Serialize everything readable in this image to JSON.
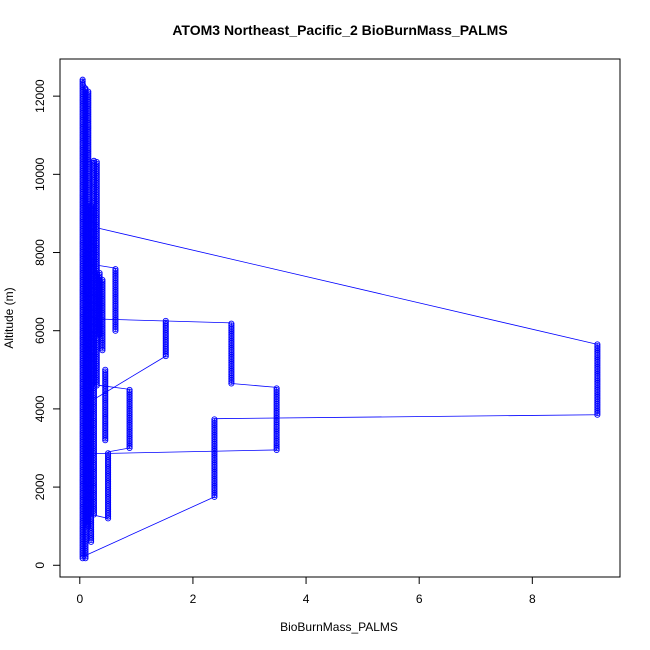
{
  "chart_data": {
    "type": "scatter",
    "title": "ATOM3 Northeast_Pacific_2 BioBurnMass_PALMS",
    "xlabel": "BioBurnMass_PALMS",
    "ylabel": "Altitude (m)",
    "xlim": [
      -0.35,
      9.55
    ],
    "ylim": [
      -300,
      12950
    ],
    "xticks": [
      0,
      2,
      4,
      6,
      8
    ],
    "yticks": [
      0,
      2000,
      4000,
      6000,
      8000,
      10000,
      12000
    ],
    "grid": false,
    "marker": "open-circle",
    "connect_points": true,
    "series_color": "#0000ff",
    "vertical_runs": [
      {
        "x": 0.05,
        "y0": 180,
        "y1": 12450
      },
      {
        "x": 0.1,
        "y0": 180,
        "y1": 12200
      },
      {
        "x": 0.15,
        "y0": 1000,
        "y1": 12150
      },
      {
        "x": 0.2,
        "y0": 600,
        "y1": 9200
      },
      {
        "x": 0.25,
        "y0": 1300,
        "y1": 10350
      },
      {
        "x": 0.3,
        "y0": 4600,
        "y1": 10350
      },
      {
        "x": 0.35,
        "y0": 5900,
        "y1": 7500
      },
      {
        "x": 0.4,
        "y0": 5500,
        "y1": 7300
      },
      {
        "x": 0.45,
        "y0": 3200,
        "y1": 5000
      },
      {
        "x": 0.5,
        "y0": 1200,
        "y1": 2900
      },
      {
        "x": 0.63,
        "y0": 6000,
        "y1": 7600
      },
      {
        "x": 0.88,
        "y0": 3000,
        "y1": 4500
      },
      {
        "x": 1.52,
        "y0": 5350,
        "y1": 6250
      },
      {
        "x": 2.38,
        "y0": 1750,
        "y1": 3750
      },
      {
        "x": 2.68,
        "y0": 4650,
        "y1": 6200
      },
      {
        "x": 3.48,
        "y0": 2950,
        "y1": 4550
      },
      {
        "x": 9.15,
        "y0": 3850,
        "y1": 5650
      }
    ],
    "connector_segments": [
      [
        [
          0.25,
          8650
        ],
        [
          9.15,
          5650
        ]
      ],
      [
        [
          0.3,
          6300
        ],
        [
          2.68,
          6200
        ]
      ],
      [
        [
          2.68,
          4650
        ],
        [
          3.48,
          4550
        ]
      ],
      [
        [
          2.38,
          3750
        ],
        [
          9.15,
          3850
        ]
      ],
      [
        [
          0.1,
          2850
        ],
        [
          3.48,
          2950
        ]
      ],
      [
        [
          0.1,
          250
        ],
        [
          2.38,
          1750
        ]
      ],
      [
        [
          0.2,
          4200
        ],
        [
          1.52,
          5350
        ]
      ],
      [
        [
          0.35,
          4600
        ],
        [
          0.88,
          4500
        ]
      ],
      [
        [
          0.5,
          2900
        ],
        [
          0.88,
          3000
        ]
      ],
      [
        [
          0.2,
          7700
        ],
        [
          0.63,
          7600
        ]
      ],
      [
        [
          0.05,
          12450
        ],
        [
          0.15,
          12150
        ]
      ],
      [
        [
          0.25,
          10350
        ],
        [
          0.05,
          10300
        ]
      ],
      [
        [
          0.4,
          5800
        ],
        [
          0.1,
          5900
        ]
      ],
      [
        [
          0.2,
          1300
        ],
        [
          0.5,
          1200
        ]
      ]
    ]
  }
}
